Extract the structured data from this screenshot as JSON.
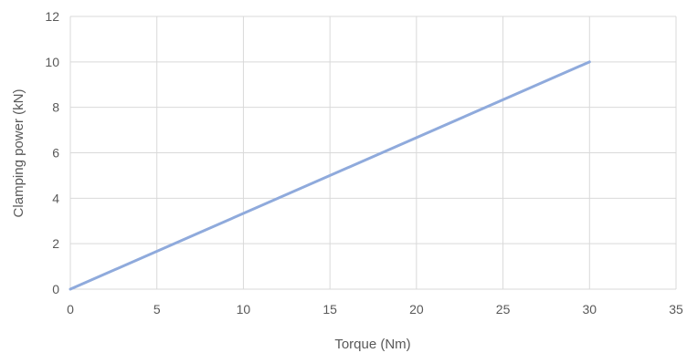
{
  "chart_data": {
    "type": "line",
    "title": "",
    "xlabel": "Torque (Nm)",
    "ylabel": "Clamping power (kN)",
    "xlim": [
      0,
      35
    ],
    "ylim": [
      0,
      12
    ],
    "x_ticks": [
      "0",
      "5",
      "10",
      "15",
      "20",
      "25",
      "30",
      "35"
    ],
    "y_ticks": [
      "0",
      "2",
      "4",
      "6",
      "8",
      "10",
      "12"
    ],
    "grid": true,
    "legend": "none",
    "series": [
      {
        "color": "#8faadc",
        "x": [
          0,
          30
        ],
        "y": [
          0,
          10
        ]
      }
    ],
    "colors": {
      "grid": "#d9d9d9",
      "text": "#595959"
    }
  }
}
